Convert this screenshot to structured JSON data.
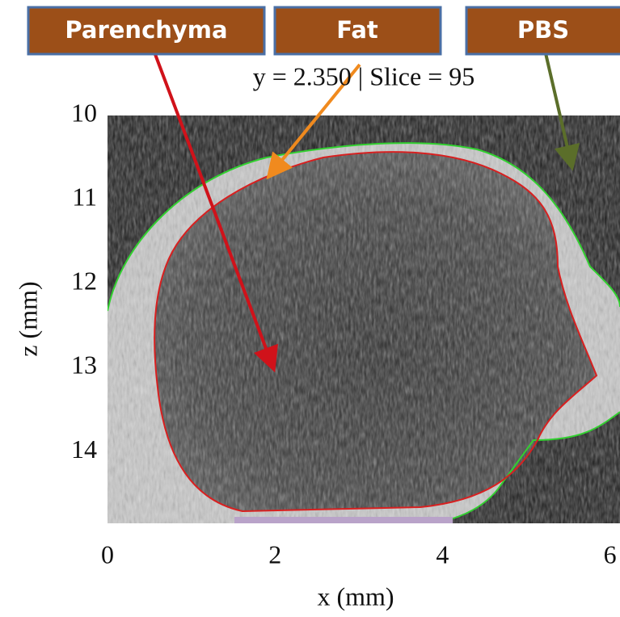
{
  "labels": [
    "Parenchyma",
    "Fat",
    "PBS"
  ],
  "title": "y = 2.350 | Slice = 95",
  "axes": {
    "x_label": "x (mm)",
    "y_label": "z (mm)",
    "xlim": [
      0,
      6.12
    ],
    "ylim": [
      10,
      14.85
    ],
    "xticks": [
      0,
      2,
      4,
      6
    ],
    "yticks": [
      10,
      11,
      12,
      13,
      14
    ]
  }
}
